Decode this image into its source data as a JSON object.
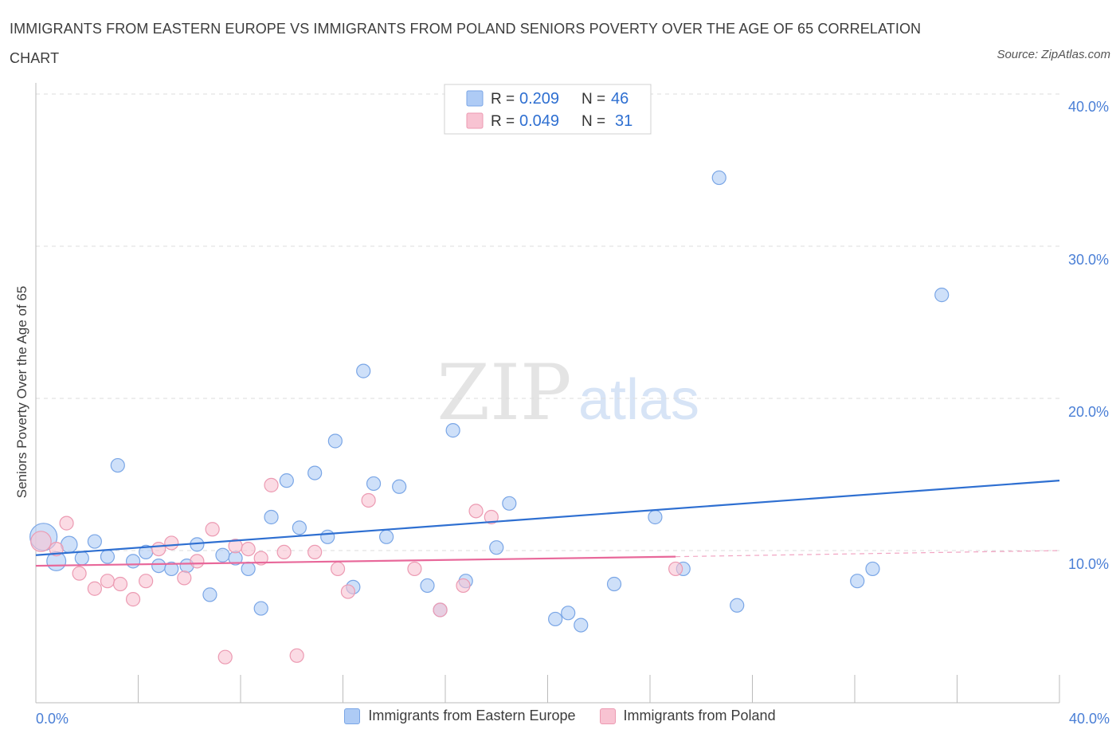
{
  "header": {
    "title": "IMMIGRANTS FROM EASTERN EUROPE VS IMMIGRANTS FROM POLAND SENIORS POVERTY OVER THE AGE OF 65 CORRELATION CHART",
    "source": "Source: ZipAtlas.com"
  },
  "watermark": {
    "zip": "ZIP",
    "atlas": "atlas"
  },
  "colors": {
    "blue_fill": "#aecbf5",
    "blue_stroke": "#7aa6e6",
    "blue_line": "#2e6fd1",
    "pink_fill": "#f8c3d2",
    "pink_stroke": "#ec9ab2",
    "pink_line": "#e8689a",
    "tick_text": "#4a7fd6",
    "grid": "#dddddd"
  },
  "legend": {
    "r_label": "R =",
    "n_label": "N =",
    "series1": {
      "r": "0.209",
      "n": "46"
    },
    "series2": {
      "r": "0.049",
      "n": "31"
    }
  },
  "chart_data": {
    "type": "scatter",
    "title": "IMMIGRANTS FROM EASTERN EUROPE VS IMMIGRANTS FROM POLAND SENIORS POVERTY OVER THE AGE OF 65 CORRELATION CHART",
    "xlabel": "",
    "ylabel": "Seniors Poverty Over the Age of 65",
    "xlim": [
      0,
      40
    ],
    "ylim": [
      0,
      40
    ],
    "x_tick_labels": [
      "0.0%",
      "40.0%"
    ],
    "y_ticks": [
      10,
      20,
      30,
      40
    ],
    "y_tick_labels": [
      "10.0%",
      "20.0%",
      "30.0%",
      "40.0%"
    ],
    "legend_position": "top-center",
    "series": [
      {
        "name": "Immigrants from Eastern Europe",
        "color": "blue",
        "r": 0.209,
        "n": 46,
        "trend": {
          "x": [
            0,
            40
          ],
          "y": [
            9.7,
            14.6
          ]
        },
        "points": [
          {
            "x": 0.3,
            "y": 10.9,
            "s": 2
          },
          {
            "x": 0.8,
            "y": 9.3,
            "s": 1.4
          },
          {
            "x": 1.3,
            "y": 10.4,
            "s": 1.2
          },
          {
            "x": 1.8,
            "y": 9.5,
            "s": 1
          },
          {
            "x": 2.3,
            "y": 10.6,
            "s": 1
          },
          {
            "x": 2.8,
            "y": 9.6,
            "s": 1
          },
          {
            "x": 3.2,
            "y": 15.6,
            "s": 1
          },
          {
            "x": 3.8,
            "y": 9.3,
            "s": 1
          },
          {
            "x": 4.3,
            "y": 9.9,
            "s": 1
          },
          {
            "x": 4.8,
            "y": 9.0,
            "s": 1
          },
          {
            "x": 5.3,
            "y": 8.8,
            "s": 1
          },
          {
            "x": 5.9,
            "y": 9.0,
            "s": 1
          },
          {
            "x": 6.3,
            "y": 10.4,
            "s": 1
          },
          {
            "x": 6.8,
            "y": 7.1,
            "s": 1
          },
          {
            "x": 7.3,
            "y": 9.7,
            "s": 1
          },
          {
            "x": 7.8,
            "y": 9.5,
            "s": 1
          },
          {
            "x": 8.3,
            "y": 8.8,
            "s": 1
          },
          {
            "x": 8.8,
            "y": 6.2,
            "s": 1
          },
          {
            "x": 9.2,
            "y": 12.2,
            "s": 1
          },
          {
            "x": 9.8,
            "y": 14.6,
            "s": 1
          },
          {
            "x": 10.3,
            "y": 11.5,
            "s": 1
          },
          {
            "x": 10.9,
            "y": 15.1,
            "s": 1
          },
          {
            "x": 11.4,
            "y": 10.9,
            "s": 1
          },
          {
            "x": 11.7,
            "y": 17.2,
            "s": 1
          },
          {
            "x": 12.4,
            "y": 7.6,
            "s": 1
          },
          {
            "x": 12.8,
            "y": 21.8,
            "s": 1
          },
          {
            "x": 13.2,
            "y": 14.4,
            "s": 1
          },
          {
            "x": 13.7,
            "y": 10.9,
            "s": 1
          },
          {
            "x": 14.2,
            "y": 14.2,
            "s": 1
          },
          {
            "x": 15.3,
            "y": 7.7,
            "s": 1
          },
          {
            "x": 15.8,
            "y": 6.1,
            "s": 1
          },
          {
            "x": 16.3,
            "y": 17.9,
            "s": 1
          },
          {
            "x": 16.8,
            "y": 8.0,
            "s": 1
          },
          {
            "x": 18.0,
            "y": 10.2,
            "s": 1
          },
          {
            "x": 18.5,
            "y": 13.1,
            "s": 1
          },
          {
            "x": 20.3,
            "y": 5.5,
            "s": 1
          },
          {
            "x": 20.8,
            "y": 5.9,
            "s": 1
          },
          {
            "x": 21.3,
            "y": 5.1,
            "s": 1
          },
          {
            "x": 22.6,
            "y": 7.8,
            "s": 1
          },
          {
            "x": 24.2,
            "y": 12.2,
            "s": 1
          },
          {
            "x": 25.3,
            "y": 8.8,
            "s": 1
          },
          {
            "x": 26.7,
            "y": 34.5,
            "s": 1
          },
          {
            "x": 27.4,
            "y": 6.4,
            "s": 1
          },
          {
            "x": 32.1,
            "y": 8.0,
            "s": 1
          },
          {
            "x": 32.7,
            "y": 8.8,
            "s": 1
          },
          {
            "x": 35.4,
            "y": 26.8,
            "s": 1
          }
        ]
      },
      {
        "name": "Immigrants from Poland",
        "color": "pink",
        "r": 0.049,
        "n": 31,
        "trend": {
          "x": [
            0,
            25
          ],
          "y": [
            9.0,
            9.6
          ]
        },
        "trend_dashed": {
          "x": [
            25,
            40
          ],
          "y": [
            9.6,
            10.0
          ]
        },
        "points": [
          {
            "x": 0.2,
            "y": 10.6,
            "s": 1.5
          },
          {
            "x": 0.8,
            "y": 10.1,
            "s": 1
          },
          {
            "x": 1.2,
            "y": 11.8,
            "s": 1
          },
          {
            "x": 1.7,
            "y": 8.5,
            "s": 1
          },
          {
            "x": 2.3,
            "y": 7.5,
            "s": 1
          },
          {
            "x": 2.8,
            "y": 8.0,
            "s": 1
          },
          {
            "x": 3.3,
            "y": 7.8,
            "s": 1
          },
          {
            "x": 3.8,
            "y": 6.8,
            "s": 1
          },
          {
            "x": 4.3,
            "y": 8.0,
            "s": 1
          },
          {
            "x": 4.8,
            "y": 10.1,
            "s": 1
          },
          {
            "x": 5.3,
            "y": 10.5,
            "s": 1
          },
          {
            "x": 5.8,
            "y": 8.2,
            "s": 1
          },
          {
            "x": 6.3,
            "y": 9.3,
            "s": 1
          },
          {
            "x": 6.9,
            "y": 11.4,
            "s": 1
          },
          {
            "x": 7.4,
            "y": 3.0,
            "s": 1
          },
          {
            "x": 7.8,
            "y": 10.3,
            "s": 1
          },
          {
            "x": 8.3,
            "y": 10.1,
            "s": 1
          },
          {
            "x": 8.8,
            "y": 9.5,
            "s": 1
          },
          {
            "x": 9.2,
            "y": 14.3,
            "s": 1
          },
          {
            "x": 9.7,
            "y": 9.9,
            "s": 1
          },
          {
            "x": 10.2,
            "y": 3.1,
            "s": 1
          },
          {
            "x": 10.9,
            "y": 9.9,
            "s": 1
          },
          {
            "x": 11.8,
            "y": 8.8,
            "s": 1
          },
          {
            "x": 12.2,
            "y": 7.3,
            "s": 1
          },
          {
            "x": 13.0,
            "y": 13.3,
            "s": 1
          },
          {
            "x": 14.8,
            "y": 8.8,
            "s": 1
          },
          {
            "x": 15.8,
            "y": 6.1,
            "s": 1
          },
          {
            "x": 16.7,
            "y": 7.7,
            "s": 1
          },
          {
            "x": 17.2,
            "y": 12.6,
            "s": 1
          },
          {
            "x": 17.8,
            "y": 12.2,
            "s": 1
          },
          {
            "x": 25.0,
            "y": 8.8,
            "s": 1
          }
        ]
      }
    ]
  }
}
